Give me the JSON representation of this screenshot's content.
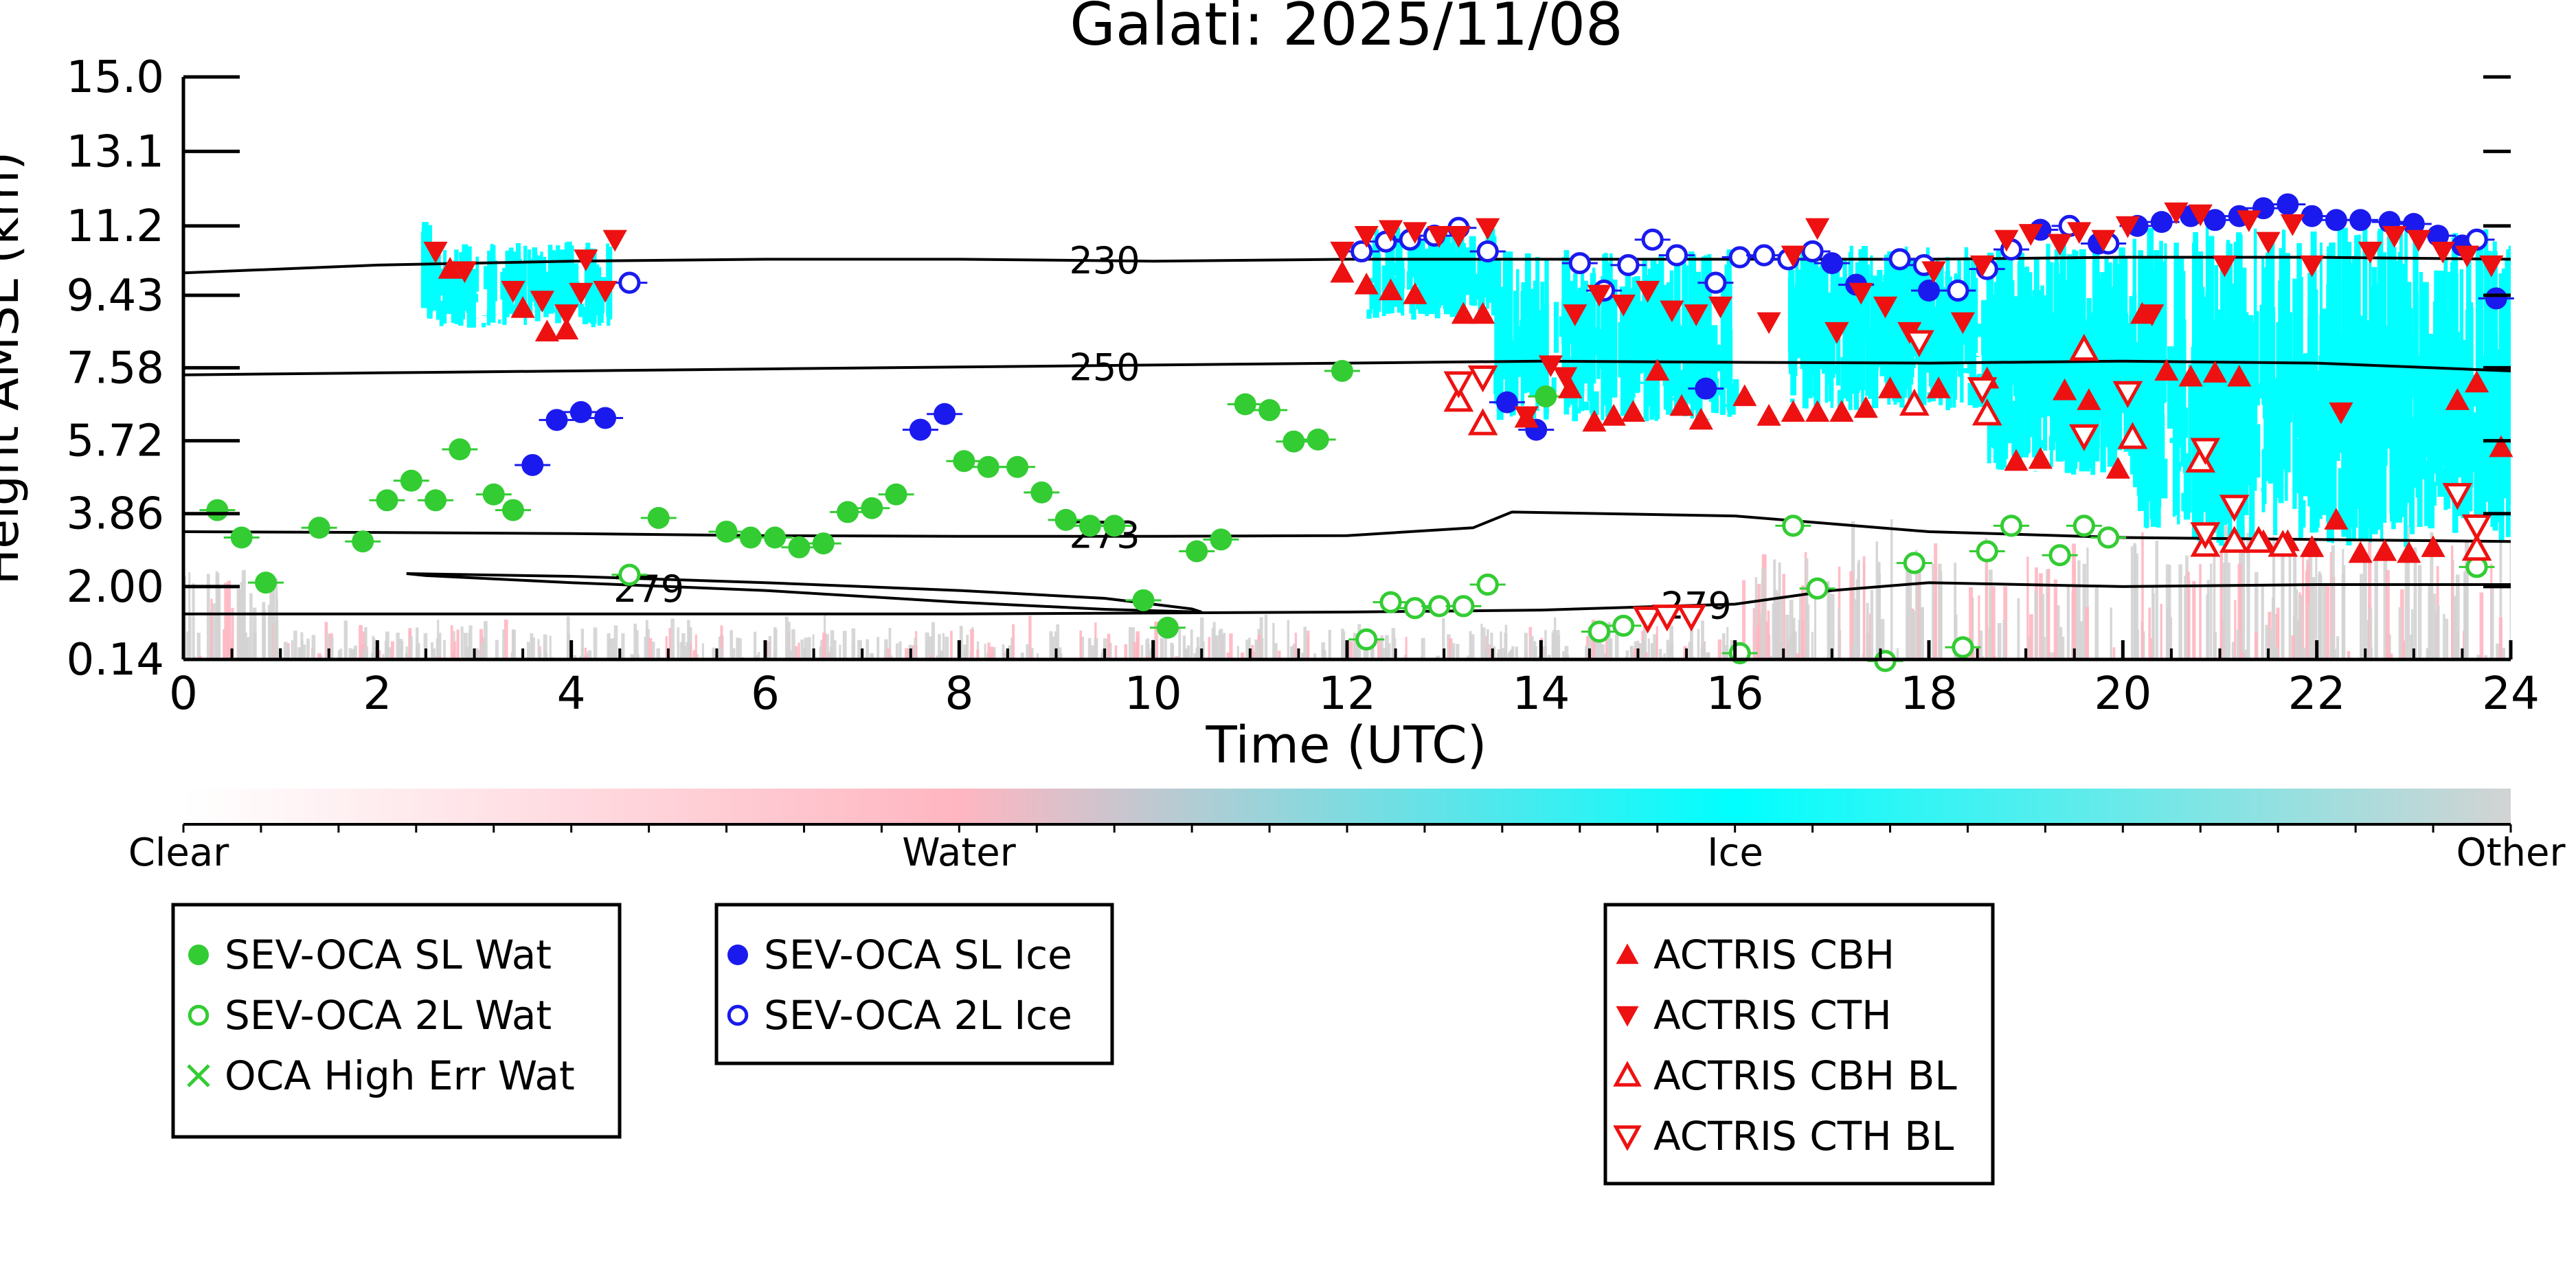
{
  "chart_data": {
    "type": "scatter",
    "title": "Galati: 2025/11/08",
    "xlabel": "Time (UTC)",
    "ylabel": "Height AMSL (km)",
    "xlim": [
      0,
      24
    ],
    "ylim": [
      0.14,
      15.0
    ],
    "x_ticks": [
      "0",
      "2",
      "4",
      "6",
      "8",
      "10",
      "12",
      "14",
      "16",
      "18",
      "20",
      "22",
      "24"
    ],
    "y_ticks": [
      "15.0",
      "13.1",
      "11.2",
      "9.43",
      "7.58",
      "5.72",
      "3.86",
      "2.00",
      "0.14"
    ],
    "grid": false,
    "colorbar": {
      "labels": [
        "Clear",
        "Water",
        "Ice",
        "Other"
      ],
      "colors": [
        "#ffffff",
        "#ffb6c1",
        "#00ffff",
        "#d3d3d3"
      ]
    },
    "isotherms": [
      {
        "label": "230",
        "label_x": 9.5,
        "label_y": 10.3,
        "x": [
          0,
          2,
          4,
          6,
          8,
          10,
          12,
          14,
          16,
          18,
          20,
          22,
          24
        ],
        "y": [
          10.0,
          10.2,
          10.3,
          10.35,
          10.35,
          10.3,
          10.35,
          10.35,
          10.35,
          10.35,
          10.4,
          10.4,
          10.35
        ]
      },
      {
        "label": "250",
        "label_x": 9.5,
        "label_y": 7.58,
        "x": [
          0,
          2,
          4,
          6,
          8,
          10,
          12,
          14,
          16,
          18,
          20,
          22,
          24
        ],
        "y": [
          7.4,
          7.45,
          7.5,
          7.55,
          7.6,
          7.65,
          7.7,
          7.75,
          7.72,
          7.7,
          7.75,
          7.7,
          7.5
        ]
      },
      {
        "label": "273",
        "label_x": 9.5,
        "label_y": 3.3,
        "x": [
          0,
          2,
          4,
          6,
          8,
          10,
          12,
          13.3,
          13.7,
          16,
          18,
          20,
          22,
          24
        ],
        "y": [
          3.4,
          3.38,
          3.35,
          3.3,
          3.28,
          3.28,
          3.3,
          3.5,
          3.9,
          3.8,
          3.4,
          3.25,
          3.2,
          3.15
        ]
      },
      {
        "label": "279",
        "label_x": 4.8,
        "label_y": 1.93,
        "x": [
          2.3,
          4,
          6,
          8,
          9.5,
          10.4,
          10.5,
          9.5,
          8,
          6,
          4,
          2.5,
          2.3
        ],
        "y": [
          2.33,
          2.26,
          2.1,
          1.9,
          1.7,
          1.43,
          1.35,
          1.42,
          1.6,
          1.9,
          2.1,
          2.28,
          2.33
        ]
      },
      {
        "label": "279",
        "label_x": 15.6,
        "label_y": 1.5,
        "x": [
          0,
          4,
          8,
          12,
          14,
          16,
          17,
          18,
          20,
          22,
          24
        ],
        "y": [
          1.3,
          1.3,
          1.3,
          1.35,
          1.4,
          1.55,
          1.9,
          2.1,
          2.0,
          2.05,
          2.05
        ]
      }
    ],
    "series": [
      {
        "name": "SEV-OCA SL Wat",
        "marker": "filled-circle",
        "color": "#33cc33",
        "points": [
          [
            0.35,
            3.95
          ],
          [
            0.6,
            3.25
          ],
          [
            0.85,
            2.1
          ],
          [
            1.4,
            3.5
          ],
          [
            1.85,
            3.15
          ],
          [
            2.1,
            4.2
          ],
          [
            2.35,
            4.7
          ],
          [
            2.6,
            4.2
          ],
          [
            2.85,
            5.5
          ],
          [
            3.2,
            4.35
          ],
          [
            3.4,
            3.95
          ],
          [
            4.9,
            3.75
          ],
          [
            5.6,
            3.4
          ],
          [
            5.85,
            3.25
          ],
          [
            6.1,
            3.25
          ],
          [
            6.35,
            3.0
          ],
          [
            6.6,
            3.1
          ],
          [
            6.85,
            3.9
          ],
          [
            7.1,
            4.0
          ],
          [
            7.35,
            4.35
          ],
          [
            8.05,
            5.2
          ],
          [
            8.3,
            5.05
          ],
          [
            8.6,
            5.05
          ],
          [
            8.85,
            4.4
          ],
          [
            9.1,
            3.7
          ],
          [
            9.35,
            3.55
          ],
          [
            9.6,
            3.55
          ],
          [
            9.9,
            1.65
          ],
          [
            10.15,
            0.95
          ],
          [
            10.45,
            2.9
          ],
          [
            10.7,
            3.2
          ],
          [
            10.95,
            6.65
          ],
          [
            11.2,
            6.5
          ],
          [
            11.45,
            5.7
          ],
          [
            11.7,
            5.75
          ],
          [
            11.95,
            7.5
          ],
          [
            14.05,
            6.85
          ]
        ]
      },
      {
        "name": "SEV-OCA 2L Wat",
        "marker": "open-circle",
        "color": "#33cc33",
        "points": [
          [
            4.6,
            2.3
          ],
          [
            12.2,
            0.65
          ],
          [
            12.45,
            1.6
          ],
          [
            12.7,
            1.45
          ],
          [
            12.95,
            1.5
          ],
          [
            13.2,
            1.5
          ],
          [
            13.45,
            2.05
          ],
          [
            14.6,
            0.85
          ],
          [
            14.85,
            1.0
          ],
          [
            16.05,
            0.3
          ],
          [
            16.6,
            3.55
          ],
          [
            16.85,
            1.95
          ],
          [
            17.55,
            0.1
          ],
          [
            17.85,
            2.6
          ],
          [
            18.35,
            0.45
          ],
          [
            18.6,
            2.9
          ],
          [
            18.85,
            3.55
          ],
          [
            19.35,
            2.8
          ],
          [
            19.6,
            3.55
          ],
          [
            19.85,
            3.25
          ],
          [
            23.65,
            2.5
          ]
        ]
      },
      {
        "name": "OCA High Err Wat",
        "marker": "x",
        "color": "#33cc33",
        "points": []
      },
      {
        "name": "SEV-OCA SL Ice",
        "marker": "filled-circle",
        "color": "#1a1aee",
        "points": [
          [
            3.6,
            5.1
          ],
          [
            3.85,
            6.25
          ],
          [
            4.1,
            6.45
          ],
          [
            4.35,
            6.3
          ],
          [
            7.6,
            6.0
          ],
          [
            7.85,
            6.4
          ],
          [
            13.65,
            6.7
          ],
          [
            13.95,
            6.0
          ],
          [
            15.7,
            7.05
          ],
          [
            17.0,
            10.25
          ],
          [
            17.25,
            9.7
          ],
          [
            18.0,
            9.55
          ],
          [
            19.15,
            11.1
          ],
          [
            19.75,
            10.75
          ],
          [
            20.15,
            11.2
          ],
          [
            20.4,
            11.3
          ],
          [
            20.7,
            11.45
          ],
          [
            20.95,
            11.35
          ],
          [
            21.2,
            11.45
          ],
          [
            21.45,
            11.65
          ],
          [
            21.7,
            11.75
          ],
          [
            21.95,
            11.45
          ],
          [
            22.2,
            11.35
          ],
          [
            22.45,
            11.35
          ],
          [
            22.75,
            11.3
          ],
          [
            23.0,
            11.25
          ],
          [
            23.25,
            10.95
          ],
          [
            23.5,
            10.7
          ],
          [
            23.85,
            9.35
          ]
        ]
      },
      {
        "name": "SEV-OCA 2L Ice",
        "marker": "open-circle",
        "color": "#1a1aee",
        "points": [
          [
            4.6,
            9.75
          ],
          [
            12.15,
            10.55
          ],
          [
            12.4,
            10.8
          ],
          [
            12.65,
            10.85
          ],
          [
            12.9,
            10.95
          ],
          [
            13.15,
            11.15
          ],
          [
            13.45,
            10.55
          ],
          [
            14.4,
            10.25
          ],
          [
            14.65,
            9.55
          ],
          [
            14.9,
            10.2
          ],
          [
            15.15,
            10.85
          ],
          [
            15.4,
            10.45
          ],
          [
            15.8,
            9.75
          ],
          [
            16.05,
            10.4
          ],
          [
            16.3,
            10.45
          ],
          [
            16.55,
            10.35
          ],
          [
            16.8,
            10.55
          ],
          [
            17.7,
            10.35
          ],
          [
            17.95,
            10.2
          ],
          [
            18.3,
            9.55
          ],
          [
            18.6,
            10.1
          ],
          [
            18.85,
            10.6
          ],
          [
            19.45,
            11.2
          ],
          [
            19.85,
            10.75
          ],
          [
            23.65,
            10.85
          ]
        ]
      },
      {
        "name": "ACTRIS CBH",
        "marker": "triangle-up",
        "color": "#ee1111",
        "points": [
          [
            2.75,
            10.1
          ],
          [
            3.5,
            9.1
          ],
          [
            3.75,
            8.5
          ],
          [
            3.95,
            8.55
          ],
          [
            11.95,
            10.0
          ],
          [
            12.2,
            9.7
          ],
          [
            12.45,
            9.55
          ],
          [
            12.7,
            9.45
          ],
          [
            13.2,
            8.95
          ],
          [
            13.4,
            8.95
          ],
          [
            13.85,
            6.3
          ],
          [
            14.3,
            7.05
          ],
          [
            14.55,
            6.2
          ],
          [
            14.75,
            6.35
          ],
          [
            14.95,
            6.45
          ],
          [
            15.2,
            7.5
          ],
          [
            15.45,
            6.6
          ],
          [
            15.65,
            6.25
          ],
          [
            16.1,
            6.85
          ],
          [
            16.35,
            6.35
          ],
          [
            16.6,
            6.45
          ],
          [
            16.85,
            6.45
          ],
          [
            17.1,
            6.45
          ],
          [
            17.35,
            6.55
          ],
          [
            17.6,
            7.05
          ],
          [
            17.85,
            6.65
          ],
          [
            18.1,
            7.05
          ],
          [
            18.6,
            7.3
          ],
          [
            18.9,
            5.2
          ],
          [
            19.15,
            5.25
          ],
          [
            19.4,
            7.0
          ],
          [
            19.65,
            6.75
          ],
          [
            19.95,
            5.0
          ],
          [
            20.2,
            8.95
          ],
          [
            20.45,
            7.5
          ],
          [
            20.7,
            7.35
          ],
          [
            20.95,
            7.45
          ],
          [
            21.2,
            7.35
          ],
          [
            21.45,
            3.15
          ],
          [
            21.7,
            3.15
          ],
          [
            21.95,
            3.0
          ],
          [
            22.2,
            3.7
          ],
          [
            22.45,
            2.85
          ],
          [
            22.7,
            2.9
          ],
          [
            22.95,
            2.85
          ],
          [
            23.2,
            3.0
          ],
          [
            23.45,
            6.75
          ],
          [
            23.65,
            7.2
          ],
          [
            23.9,
            5.55
          ]
        ]
      },
      {
        "name": "ACTRIS CTH",
        "marker": "triangle-down",
        "color": "#ee1111",
        "points": [
          [
            2.6,
            10.55
          ],
          [
            2.9,
            10.05
          ],
          [
            3.4,
            9.55
          ],
          [
            3.7,
            9.3
          ],
          [
            3.95,
            8.95
          ],
          [
            4.1,
            9.5
          ],
          [
            4.15,
            10.35
          ],
          [
            4.35,
            9.55
          ],
          [
            4.45,
            10.85
          ],
          [
            11.95,
            10.55
          ],
          [
            12.2,
            10.95
          ],
          [
            12.45,
            11.1
          ],
          [
            12.7,
            11.05
          ],
          [
            12.95,
            10.95
          ],
          [
            13.15,
            10.95
          ],
          [
            13.45,
            11.15
          ],
          [
            13.85,
            6.35
          ],
          [
            14.1,
            7.65
          ],
          [
            14.25,
            7.35
          ],
          [
            14.35,
            8.95
          ],
          [
            14.6,
            9.45
          ],
          [
            14.85,
            9.2
          ],
          [
            15.1,
            9.55
          ],
          [
            15.35,
            9.05
          ],
          [
            15.6,
            8.95
          ],
          [
            15.85,
            9.15
          ],
          [
            16.35,
            8.75
          ],
          [
            16.6,
            10.45
          ],
          [
            16.85,
            11.15
          ],
          [
            17.05,
            8.5
          ],
          [
            17.3,
            9.5
          ],
          [
            17.55,
            9.15
          ],
          [
            17.8,
            8.5
          ],
          [
            18.05,
            10.05
          ],
          [
            18.35,
            8.75
          ],
          [
            18.55,
            10.2
          ],
          [
            18.8,
            10.85
          ],
          [
            19.05,
            11.0
          ],
          [
            19.35,
            10.75
          ],
          [
            19.55,
            11.05
          ],
          [
            19.8,
            10.85
          ],
          [
            20.05,
            11.2
          ],
          [
            20.3,
            8.95
          ],
          [
            20.55,
            11.55
          ],
          [
            20.8,
            11.5
          ],
          [
            21.05,
            10.2
          ],
          [
            21.3,
            11.35
          ],
          [
            21.5,
            10.8
          ],
          [
            21.75,
            11.25
          ],
          [
            21.95,
            10.2
          ],
          [
            22.25,
            6.45
          ],
          [
            22.55,
            10.55
          ],
          [
            22.8,
            10.95
          ],
          [
            23.05,
            10.85
          ],
          [
            23.3,
            10.55
          ],
          [
            23.55,
            10.45
          ],
          [
            23.8,
            10.2
          ]
        ]
      },
      {
        "name": "ACTRIS CBH BL",
        "marker": "open-triangle-up",
        "color": "#ee1111",
        "points": [
          [
            13.15,
            6.75
          ],
          [
            13.4,
            6.15
          ],
          [
            17.85,
            6.65
          ],
          [
            18.6,
            6.4
          ],
          [
            19.6,
            8.05
          ],
          [
            20.1,
            5.8
          ],
          [
            20.8,
            5.2
          ],
          [
            20.85,
            3.05
          ],
          [
            21.15,
            3.15
          ],
          [
            21.4,
            3.15
          ],
          [
            21.65,
            3.05
          ],
          [
            23.65,
            2.95
          ]
        ]
      },
      {
        "name": "ACTRIS CTH BL",
        "marker": "open-triangle-down",
        "color": "#ee1111",
        "points": [
          [
            13.15,
            7.2
          ],
          [
            13.4,
            7.35
          ],
          [
            17.9,
            8.25
          ],
          [
            18.55,
            7.05
          ],
          [
            19.6,
            5.85
          ],
          [
            20.05,
            6.95
          ],
          [
            20.85,
            5.5
          ],
          [
            20.85,
            3.35
          ],
          [
            21.15,
            4.05
          ],
          [
            23.45,
            4.35
          ],
          [
            23.65,
            3.55
          ],
          [
            15.1,
            1.2
          ],
          [
            15.3,
            1.25
          ],
          [
            15.55,
            1.25
          ]
        ]
      }
    ],
    "legends": [
      {
        "entries": [
          "SEV-OCA SL Wat",
          "SEV-OCA 2L Wat",
          "OCA High Err Wat"
        ]
      },
      {
        "entries": [
          "SEV-OCA SL Ice",
          "SEV-OCA 2L Ice"
        ]
      },
      {
        "entries": [
          "ACTRIS CBH",
          "ACTRIS CTH",
          "ACTRIS CBH BL",
          "ACTRIS CTH BL"
        ]
      }
    ]
  }
}
